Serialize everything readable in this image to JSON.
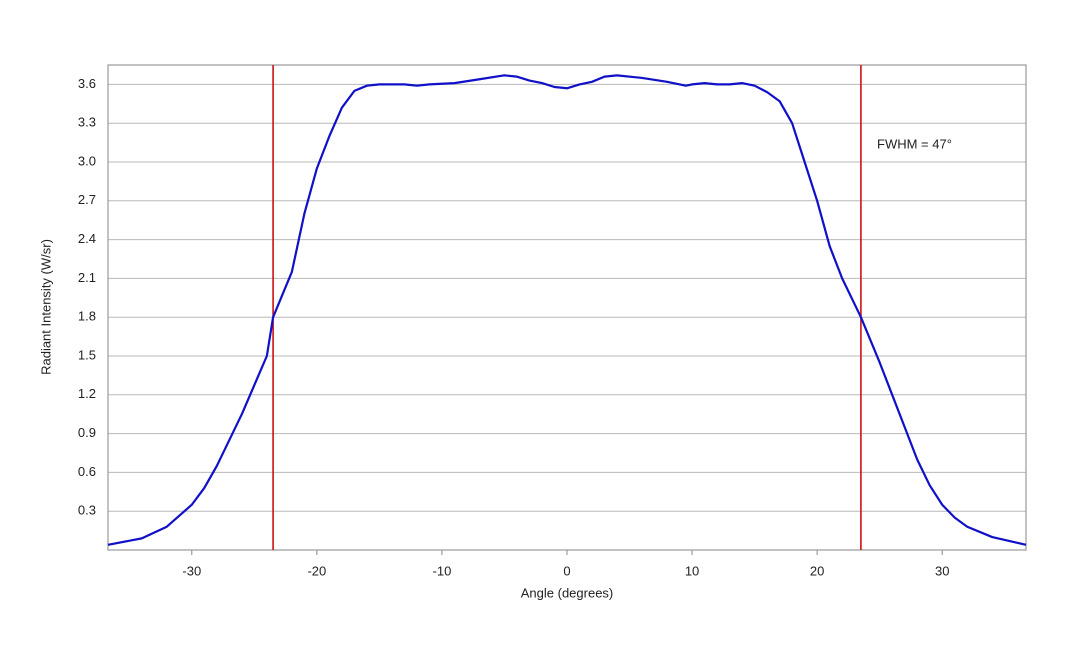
{
  "chart_data": {
    "type": "line",
    "x_label": "Angle (degrees)",
    "y_label": "Radiant Intensity (W/sr)",
    "annotation": "FWHM = 47°",
    "x": [
      -36.7,
      -34,
      -32,
      -30,
      -29,
      -28,
      -26,
      -24,
      -23.5,
      -22,
      -21,
      -20,
      -19,
      -18,
      -17,
      -16,
      -15,
      -13,
      -12,
      -11,
      -9,
      -7,
      -5,
      -4,
      -3,
      -2,
      -1,
      0,
      1,
      2,
      3,
      4,
      6,
      8,
      9.5,
      10,
      11,
      12,
      13,
      14,
      15,
      16,
      17,
      18,
      19,
      20,
      21,
      22,
      23.5,
      25,
      26,
      27,
      28,
      29,
      30,
      31,
      32,
      34,
      36.7
    ],
    "series": [
      {
        "color": "#1010c8",
        "values": [
          0.04,
          0.09,
          0.18,
          0.35,
          0.48,
          0.65,
          1.05,
          1.5,
          1.8,
          2.15,
          2.6,
          2.95,
          3.2,
          3.42,
          3.55,
          3.59,
          3.6,
          3.6,
          3.59,
          3.6,
          3.61,
          3.64,
          3.67,
          3.66,
          3.63,
          3.61,
          3.58,
          3.57,
          3.6,
          3.62,
          3.66,
          3.67,
          3.65,
          3.62,
          3.59,
          3.6,
          3.61,
          3.6,
          3.6,
          3.61,
          3.59,
          3.54,
          3.47,
          3.3,
          3.0,
          2.7,
          2.35,
          2.1,
          1.8,
          1.45,
          1.2,
          0.95,
          0.7,
          0.5,
          0.35,
          0.25,
          0.18,
          0.1,
          0.04
        ]
      }
    ],
    "vlines": [
      -23.5,
      23.5
    ],
    "vline_color": "#cc1111",
    "xlim": [
      -36.7,
      36.7
    ],
    "ylim": [
      0,
      3.75
    ],
    "xticks": [
      -30,
      -20,
      -10,
      0,
      10,
      20,
      30
    ],
    "yticks": [
      0.3,
      0.6,
      0.9,
      1.2,
      1.5,
      1.8,
      2.1,
      2.4,
      2.7,
      {
        "value": 3,
        "label": "3.0"
      },
      3.3,
      3.6
    ],
    "grid": true
  }
}
